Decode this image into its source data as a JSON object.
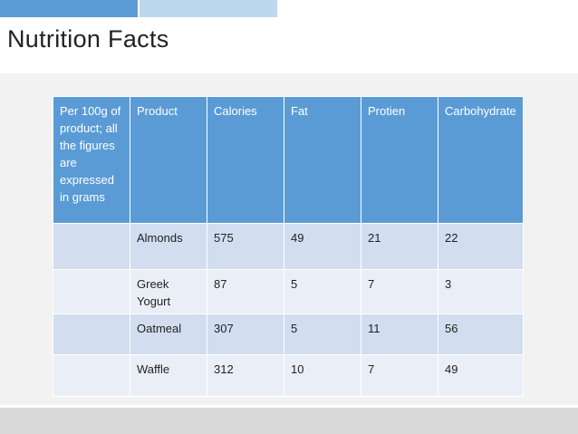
{
  "slide": {
    "title": "Nutrition Facts"
  },
  "table": {
    "headers": [
      "Per 100g of product; all the figures are expressed in grams",
      "Product",
      "Calories",
      "Fat",
      "Protien",
      "Carbohydrate"
    ],
    "rows": [
      {
        "stub": "",
        "product": "Almonds",
        "calories": "575",
        "fat": "49",
        "protein": "21",
        "carbohydrate": "22"
      },
      {
        "stub": "",
        "product": "Greek Yogurt",
        "calories": "87",
        "fat": "5",
        "protein": "7",
        "carbohydrate": "3"
      },
      {
        "stub": "",
        "product": "Oatmeal",
        "calories": "307",
        "fat": "5",
        "protein": "11",
        "carbohydrate": "56"
      },
      {
        "stub": "",
        "product": "Waffle",
        "calories": "312",
        "fat": "10",
        "protein": "7",
        "carbohydrate": "49"
      }
    ]
  },
  "colors": {
    "accent_dark": "#5b9bd5",
    "accent_light": "#bdd7ee",
    "header_fill": "#5b9bd5",
    "band_a": "#d2deef",
    "band_b": "#eaeff7",
    "content_bg": "#f2f2f2",
    "footer_bg": "#d9d9d9"
  }
}
